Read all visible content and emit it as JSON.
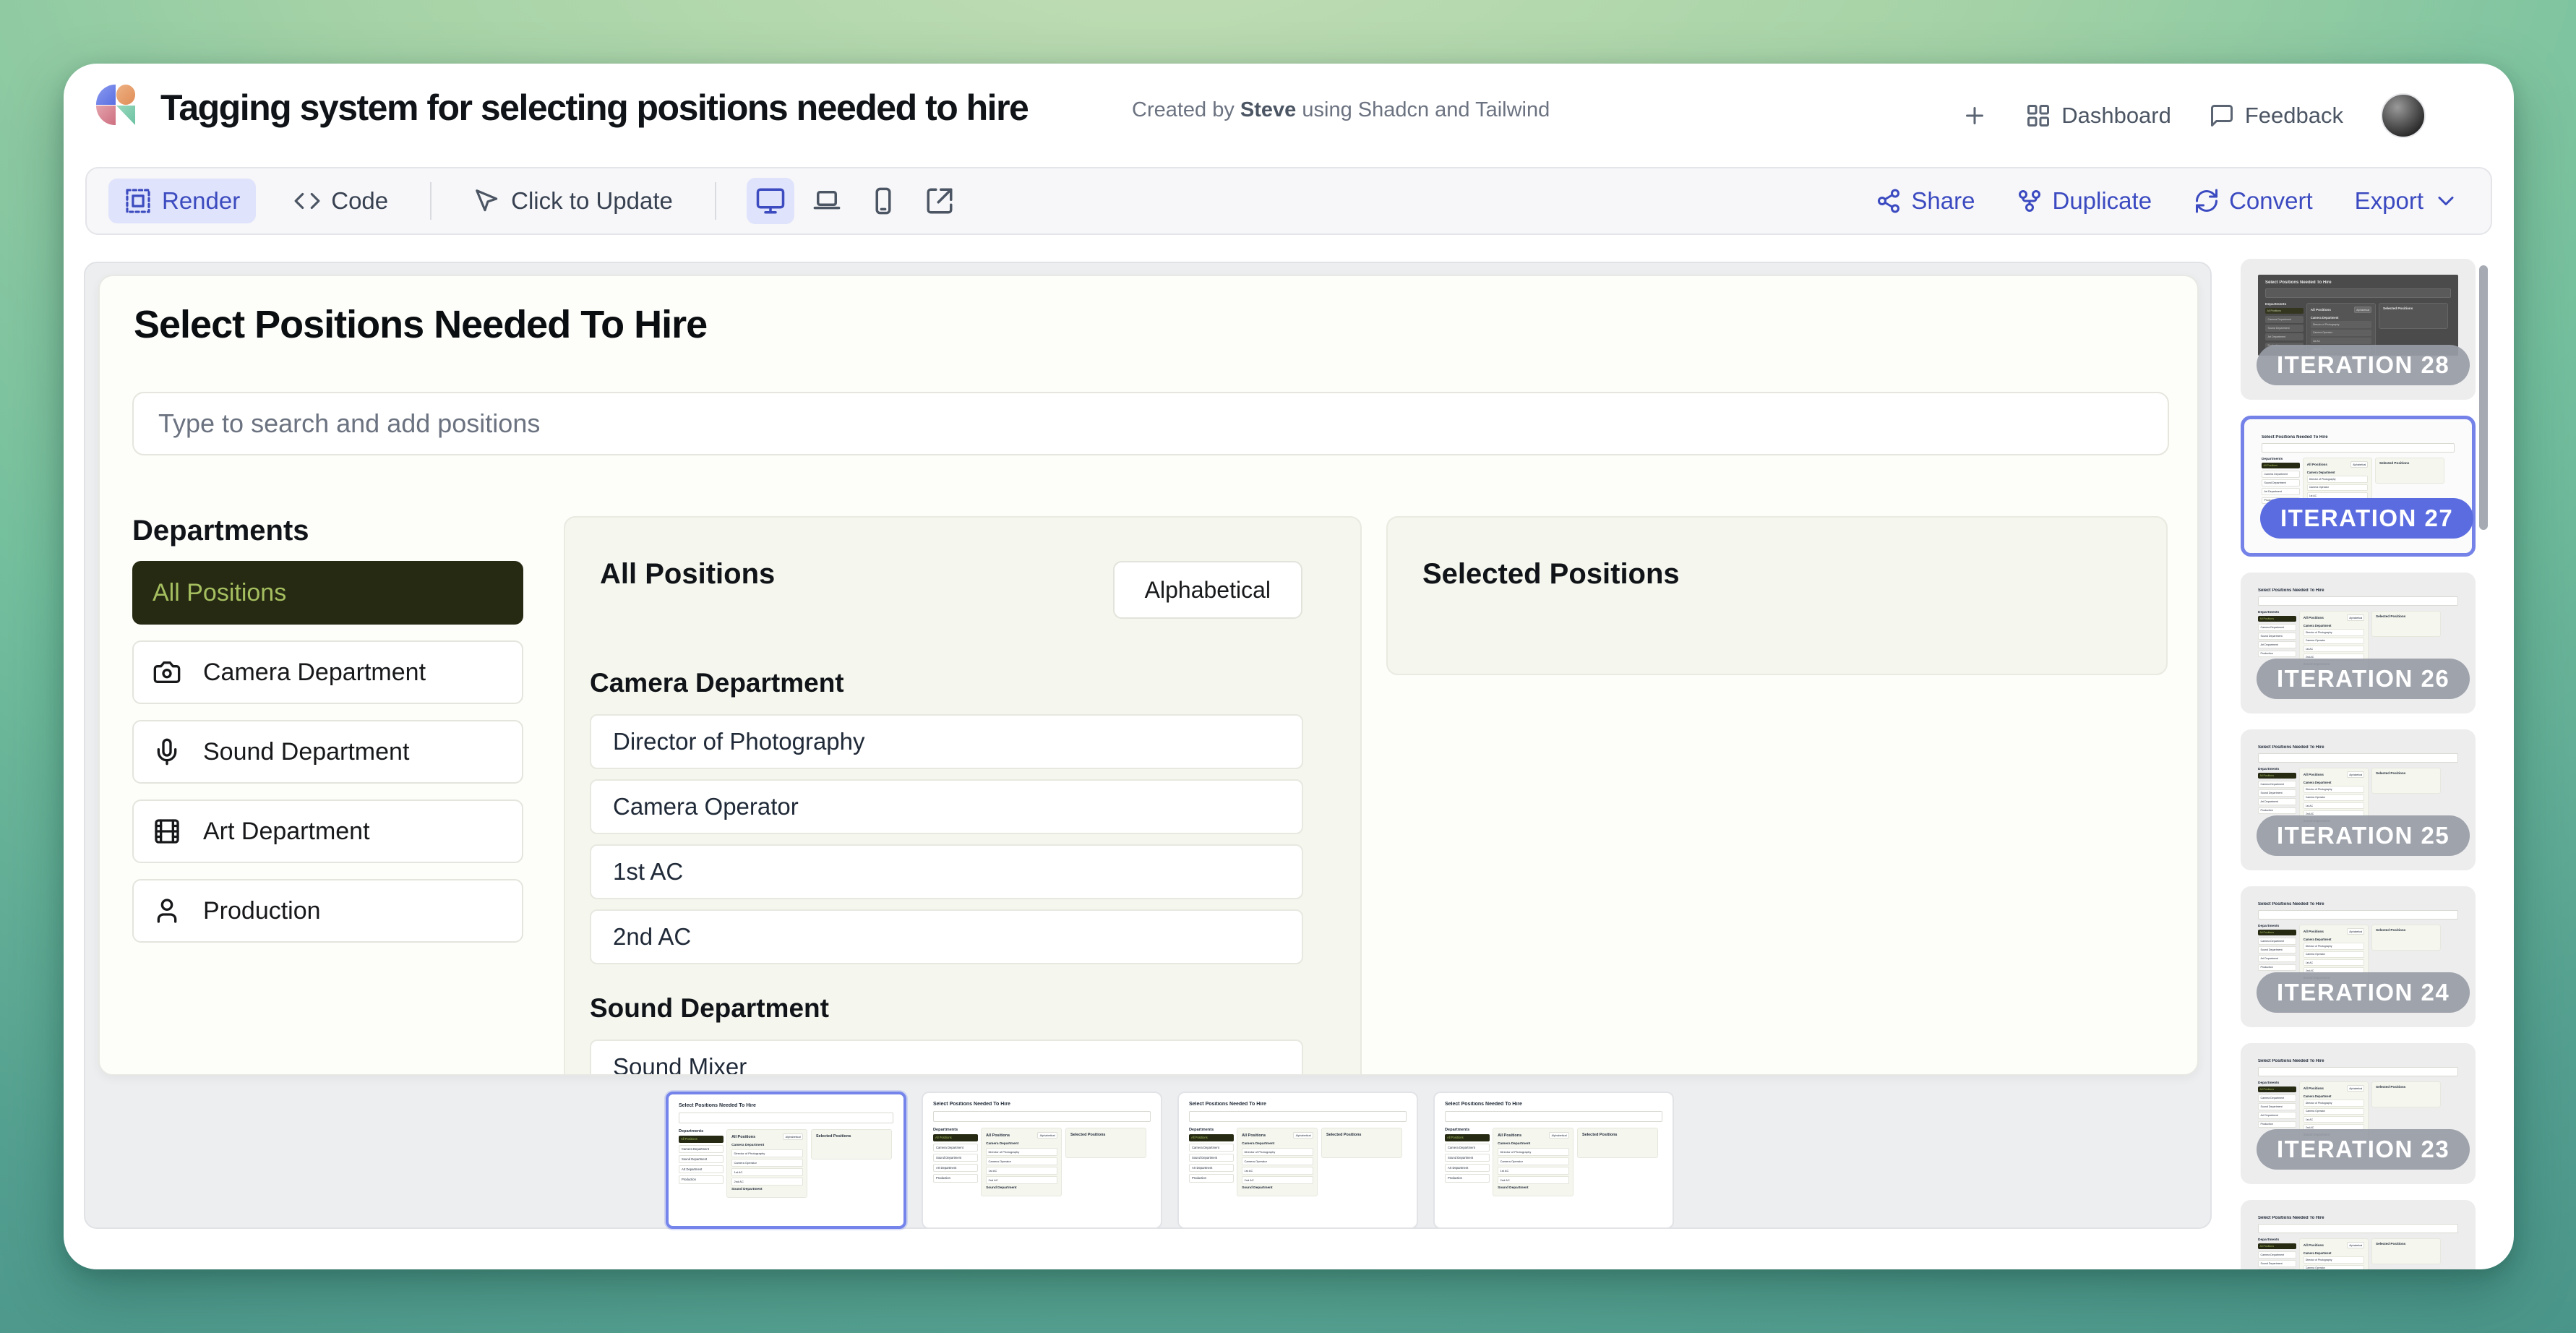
{
  "header": {
    "title": "Tagging system for selecting positions needed to hire",
    "created_by_prefix": "Created by",
    "created_by_name": "Steve",
    "created_by_suffix": "using Shadcn and Tailwind",
    "actions": {
      "dashboard": "Dashboard",
      "feedback": "Feedback"
    }
  },
  "toolbar": {
    "render": "Render",
    "code": "Code",
    "click_to_update": "Click to Update",
    "share": "Share",
    "duplicate": "Duplicate",
    "convert": "Convert",
    "export": "Export"
  },
  "app": {
    "title": "Select Positions Needed To Hire",
    "search_placeholder": "Type to search and add positions",
    "departments": {
      "heading": "Departments",
      "active_item": "All Positions",
      "items": [
        {
          "label": "Camera Department",
          "icon": "#i-camera"
        },
        {
          "label": "Sound Department",
          "icon": "#i-mic"
        },
        {
          "label": "Art Department",
          "icon": "#i-film"
        },
        {
          "label": "Production",
          "icon": "#i-user"
        }
      ]
    },
    "positions_panel": {
      "title": "All Positions",
      "sort_label": "Alphabetical",
      "group1_title": "Camera Department",
      "group1_items": [
        "Director of Photography",
        "Camera Operator",
        "1st AC",
        "2nd AC"
      ],
      "group2_title": "Sound Department",
      "group2_items": [
        "Sound Mixer"
      ]
    },
    "selected_panel": {
      "title": "Selected Positions"
    }
  },
  "iterations": {
    "items": [
      {
        "label": "ITERATION 28",
        "variant": "dark"
      },
      {
        "label": "ITERATION 27",
        "variant": "selected"
      },
      {
        "label": "ITERATION 26",
        "variant": ""
      },
      {
        "label": "ITERATION 25",
        "variant": ""
      },
      {
        "label": "ITERATION 24",
        "variant": ""
      },
      {
        "label": "ITERATION 23",
        "variant": ""
      },
      {
        "label": "",
        "variant": "partial"
      }
    ]
  },
  "thumbnails": {
    "items": [
      {
        "variant": "selected"
      },
      {
        "variant": ""
      },
      {
        "variant": ""
      },
      {
        "variant": ""
      }
    ]
  },
  "colors": {
    "accent_indigo": "#3c4bbf",
    "active_department_bg": "#262a12",
    "active_department_text": "#a5bf60",
    "selection_border": "#7484ea",
    "pill_selected": "#5b6ce0"
  }
}
